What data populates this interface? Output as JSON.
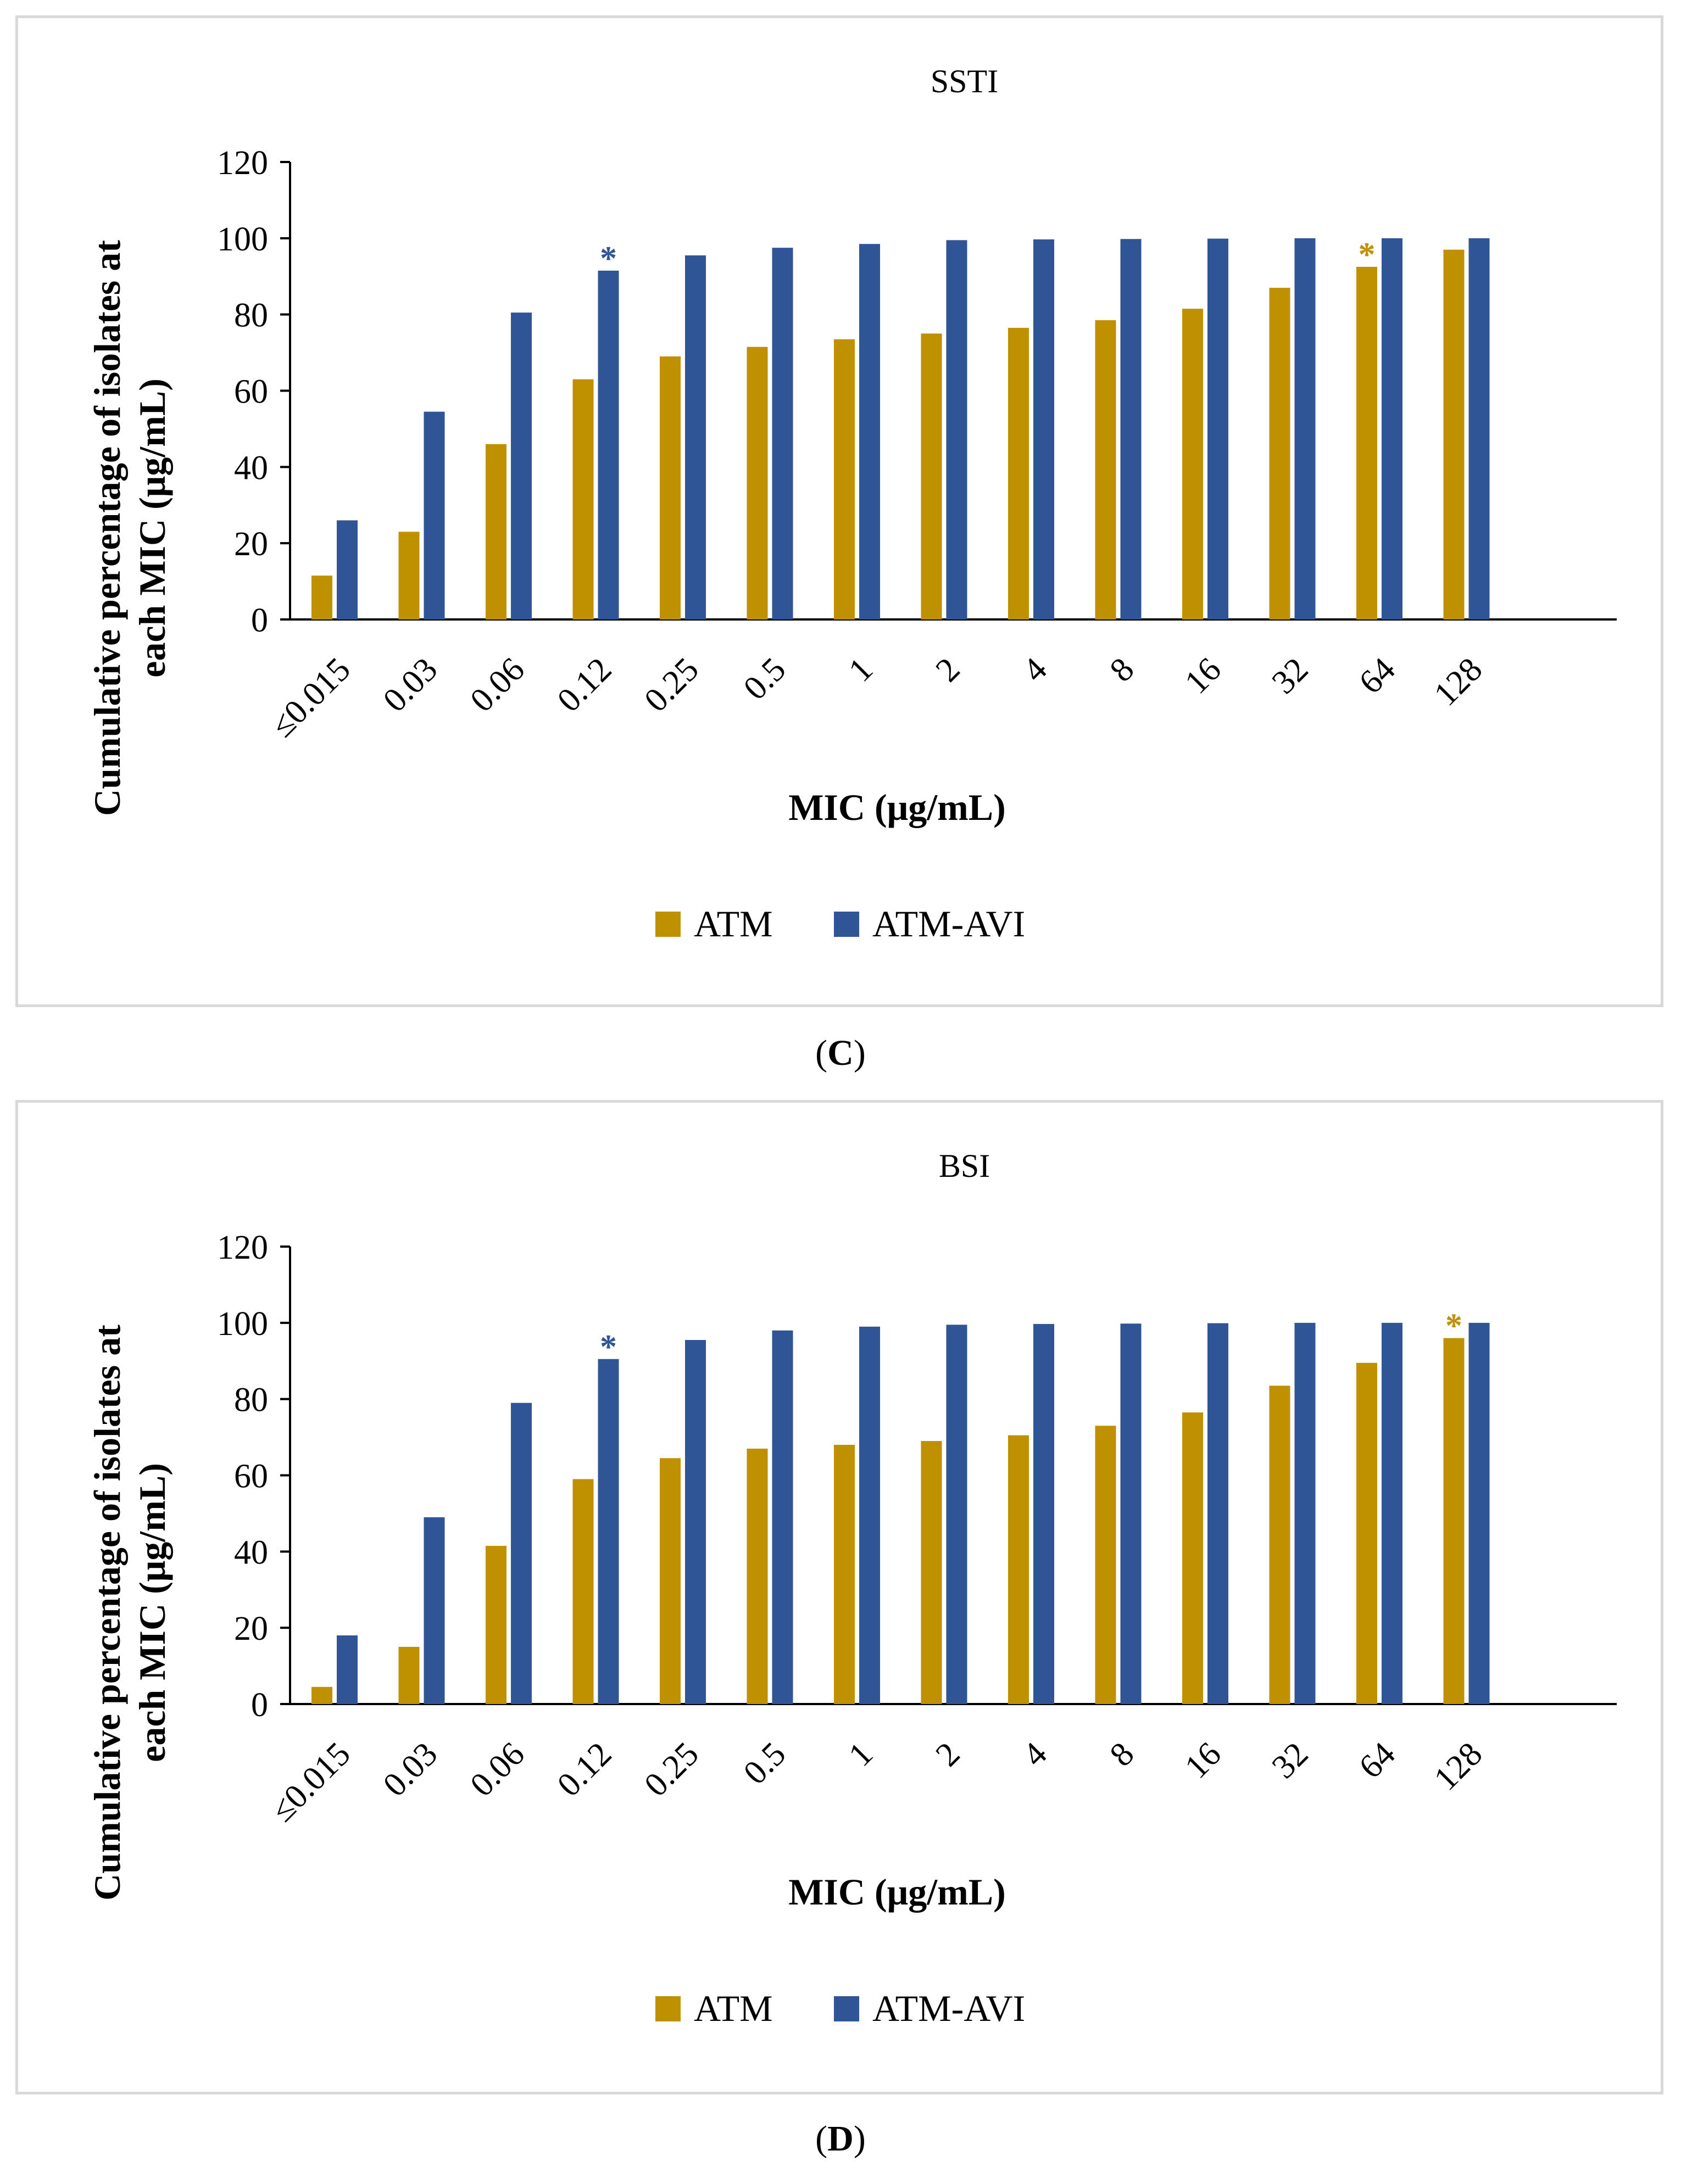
{
  "panels": [
    {
      "panel_label": "C",
      "chart_data": {
        "type": "bar",
        "title": "SSTI",
        "xlabel": "MIC (μg/mL)",
        "ylabel": "Cumulative percentage of isolates at each MIC (μg/mL)",
        "ylabel_lines": [
          "Cumulative percentage of isolates at",
          "each MIC (μg/mL)"
        ],
        "ylim": [
          0,
          120
        ],
        "yticks": [
          0,
          20,
          40,
          60,
          80,
          100,
          120
        ],
        "categories": [
          "≤0.015",
          "0.03",
          "0.06",
          "0.12",
          "0.25",
          "0.5",
          "1",
          "2",
          "4",
          "8",
          "16",
          "32",
          "64",
          "128"
        ],
        "series": [
          {
            "name": "ATM",
            "color": "#bf9000",
            "values": [
              11.5,
              23,
              46,
              63,
              69,
              71.5,
              73.5,
              75,
              76.5,
              78.5,
              81.5,
              87,
              92.5,
              97
            ]
          },
          {
            "name": "ATM-AVI",
            "color": "#2f5597",
            "values": [
              26,
              54.5,
              80.5,
              91.5,
              95.5,
              97.5,
              98.5,
              99.5,
              99.7,
              99.8,
              99.9,
              100,
              100,
              100
            ]
          }
        ],
        "annotations": [
          {
            "text": "*",
            "series": "ATM-AVI",
            "category": "0.12"
          },
          {
            "text": "*",
            "series": "ATM",
            "category": "64"
          }
        ],
        "legend": "bottom-center",
        "grid": false
      }
    },
    {
      "panel_label": "D",
      "chart_data": {
        "type": "bar",
        "title": "BSI",
        "xlabel": "MIC (μg/mL)",
        "ylabel": "Cumulative percentage of isolates at each MIC (μg/mL)",
        "ylabel_lines": [
          "Cumulative percentage of isolates at",
          "each MIC (μg/mL)"
        ],
        "ylim": [
          0,
          120
        ],
        "yticks": [
          0,
          20,
          40,
          60,
          80,
          100,
          120
        ],
        "categories": [
          "≤0.015",
          "0.03",
          "0.06",
          "0.12",
          "0.25",
          "0.5",
          "1",
          "2",
          "4",
          "8",
          "16",
          "32",
          "64",
          "128"
        ],
        "series": [
          {
            "name": "ATM",
            "color": "#bf9000",
            "values": [
              4.5,
              15,
              41.5,
              59,
              64.5,
              67,
              68,
              69,
              70.5,
              73,
              76.5,
              83.5,
              89.5,
              96
            ]
          },
          {
            "name": "ATM-AVI",
            "color": "#2f5597",
            "values": [
              18,
              49,
              79,
              90.5,
              95.5,
              98,
              99,
              99.5,
              99.7,
              99.8,
              99.9,
              100,
              100,
              100
            ]
          }
        ],
        "annotations": [
          {
            "text": "*",
            "series": "ATM-AVI",
            "category": "0.12"
          },
          {
            "text": "*",
            "series": "ATM",
            "category": "128"
          }
        ],
        "legend": "bottom-center",
        "grid": false
      }
    }
  ]
}
